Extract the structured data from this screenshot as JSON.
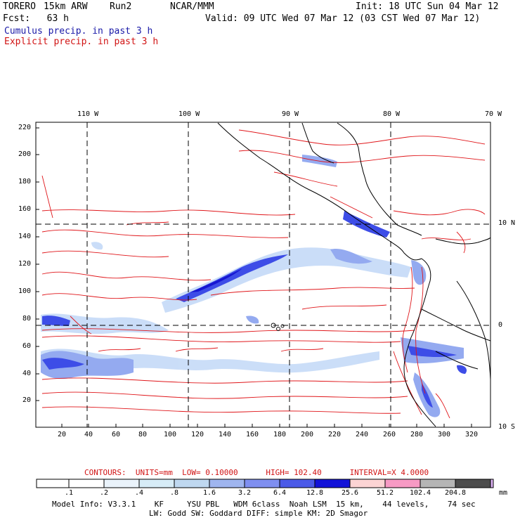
{
  "header": {
    "model": "TORERO",
    "resolution": "15km ARW",
    "run": "Run2",
    "org": "NCAR/MMM",
    "init_label": "Init:",
    "init_value": "18 UTC Sun 04 Mar 12",
    "fcst_label": "Fcst:",
    "fcst_value": "63 h",
    "valid_label": "Valid:",
    "valid_value": "09 UTC Wed 07 Mar 12 (03 CST Wed 07 Mar 12)"
  },
  "legend": {
    "cumulus": "Cumulus precip. in past 3 h",
    "explicit": "Explicit precip. in past 3 h"
  },
  "map": {
    "top_lon_labels": [
      "110 W",
      "100 W",
      "90 W",
      "80 W",
      "70 W"
    ],
    "right_lat_labels": [
      "10 N",
      "0",
      "10 S"
    ],
    "left_y_ticks": [
      "220",
      "200",
      "180",
      "160",
      "140",
      "120",
      "100",
      "80",
      "60",
      "40",
      "20"
    ],
    "bottom_x_ticks": [
      "20",
      "40",
      "60",
      "80",
      "100",
      "120",
      "140",
      "160",
      "180",
      "200",
      "220",
      "240",
      "260",
      "280",
      "300",
      "320"
    ],
    "colors": {
      "contour": "#e0161a",
      "coast": "#000000",
      "precip_light": "#c8dcf8",
      "precip_mid": "#8fa6f0",
      "precip_heavy": "#3344e6",
      "precip_max": "#0a0ad0"
    }
  },
  "contours_info": {
    "label": "CONTOURS:",
    "units": "UNITS=mm",
    "low": "LOW= 0.10000",
    "high": "HIGH= 102.40",
    "interval": "INTERVAL=X 4.0000"
  },
  "colorbar": {
    "levels": [
      ".1",
      ".2",
      ".4",
      ".8",
      "1.6",
      "3.2",
      "6.4",
      "12.8",
      "25.6",
      "51.2",
      "102.4",
      "204.8"
    ],
    "unit": "mm",
    "colors": [
      "#ffffff",
      "#ffffff",
      "#eaf3fb",
      "#d7ecf7",
      "#bfd8f0",
      "#9fb5ef",
      "#7f8ff0",
      "#4b5ae8",
      "#1212d8",
      "#fcd4d4",
      "#f79ac4",
      "#b5b5b5",
      "#4c4c4c",
      "#dcb2f3"
    ]
  },
  "footer": {
    "line1": "Model Info: V3.3.1    KF     YSU PBL   WDM 6class  Noah LSM  15 km,    44 levels,    74 sec",
    "line2": "LW: Godd SW: Goddard DIFF: simple KM: 2D Smagor"
  }
}
